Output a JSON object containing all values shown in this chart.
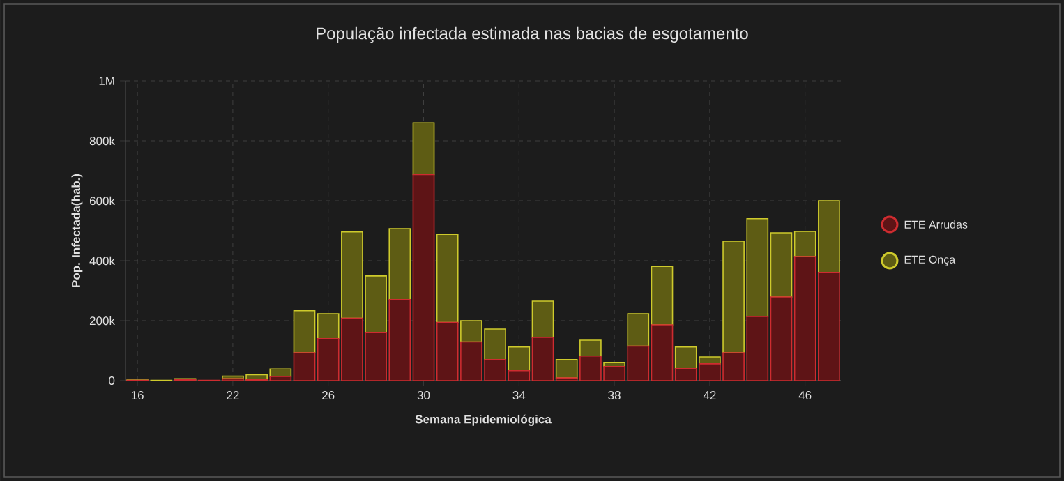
{
  "chart_data": {
    "type": "bar",
    "stacked": true,
    "title": "População infectada estimada nas bacias de esgotamento",
    "xlabel": "Semana Epidemiológica",
    "ylabel": "Pop. Infectada(hab.)",
    "categories": [
      "16",
      null,
      null,
      null,
      "22",
      null,
      null,
      null,
      "26",
      null,
      null,
      null,
      "30",
      null,
      null,
      null,
      "34",
      null,
      null,
      null,
      "38",
      null,
      null,
      null,
      "42",
      null,
      null,
      null,
      "46",
      null
    ],
    "series": [
      {
        "name": "ETE Arrudas",
        "color": "#5e1416",
        "values": [
          1000,
          0,
          3000,
          1000,
          6000,
          3000,
          14000,
          93000,
          140000,
          208000,
          161000,
          270000,
          687000,
          194000,
          129000,
          70000,
          33000,
          144000,
          9000,
          82000,
          47000,
          115000,
          186000,
          40000,
          56000,
          93000,
          214000,
          279000,
          414000,
          361000
        ]
      },
      {
        "name": "ETE Onça",
        "color": "#5e5c14",
        "values": [
          1000,
          1000,
          3000,
          0,
          9000,
          17000,
          25000,
          140000,
          83000,
          288000,
          188000,
          237000,
          173000,
          294000,
          71000,
          102000,
          79000,
          121000,
          61000,
          53000,
          13000,
          108000,
          195000,
          72000,
          23000,
          372000,
          326000,
          214000,
          84000,
          239000
        ]
      }
    ],
    "ylim": [
      0,
      1000000
    ],
    "yticks": [
      {
        "value": 0,
        "label": "0"
      },
      {
        "value": 200000,
        "label": "200k"
      },
      {
        "value": 400000,
        "label": "400k"
      },
      {
        "value": 600000,
        "label": "600k"
      },
      {
        "value": 800000,
        "label": "800k"
      },
      {
        "value": 1000000,
        "label": "1M"
      }
    ],
    "grid": true,
    "legend": "right"
  }
}
